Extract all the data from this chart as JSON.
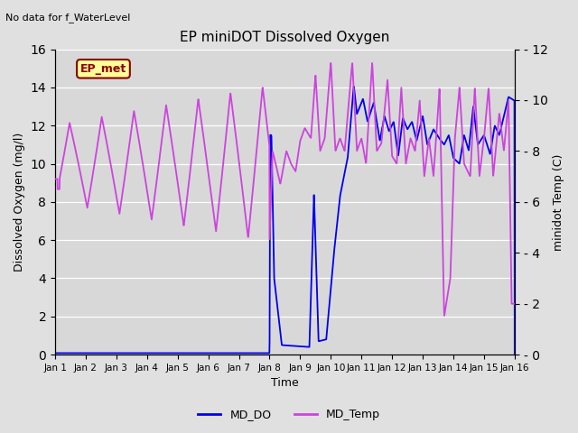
{
  "title": "EP miniDOT Dissolved Oxygen",
  "top_left_text": "No data for f_WaterLevel",
  "legend_box_text": "EP_met",
  "xlabel": "Time",
  "ylabel_left": "Dissolved Oxygen (mg/l)",
  "ylabel_right": "minidot Temp (C)",
  "ylim_left": [
    0,
    16
  ],
  "ylim_right": [
    0,
    12
  ],
  "yticks_left": [
    0,
    2,
    4,
    6,
    8,
    10,
    12,
    14,
    16
  ],
  "yticks_right": [
    0,
    2,
    4,
    6,
    8,
    10,
    12
  ],
  "xtick_labels": [
    "Jan 1",
    "Jan 2",
    "Jan 3",
    "Jan 4",
    "Jan 5",
    "Jan 6",
    "Jan 7",
    "Jan 8",
    "Jan 9",
    "Jan 10",
    "Jan 11",
    "Jan 12",
    "Jan 13",
    "Jan 14",
    "Jan 15",
    "Jan 16"
  ],
  "background_color": "#e0e0e0",
  "axes_bg_color": "#d8d8d8",
  "do_color": "#0000ee",
  "temp_color": "#cc44dd",
  "legend_do_label": "MD_DO",
  "legend_temp_label": "MD_Temp",
  "do_linewidth": 1.3,
  "temp_linewidth": 1.3
}
